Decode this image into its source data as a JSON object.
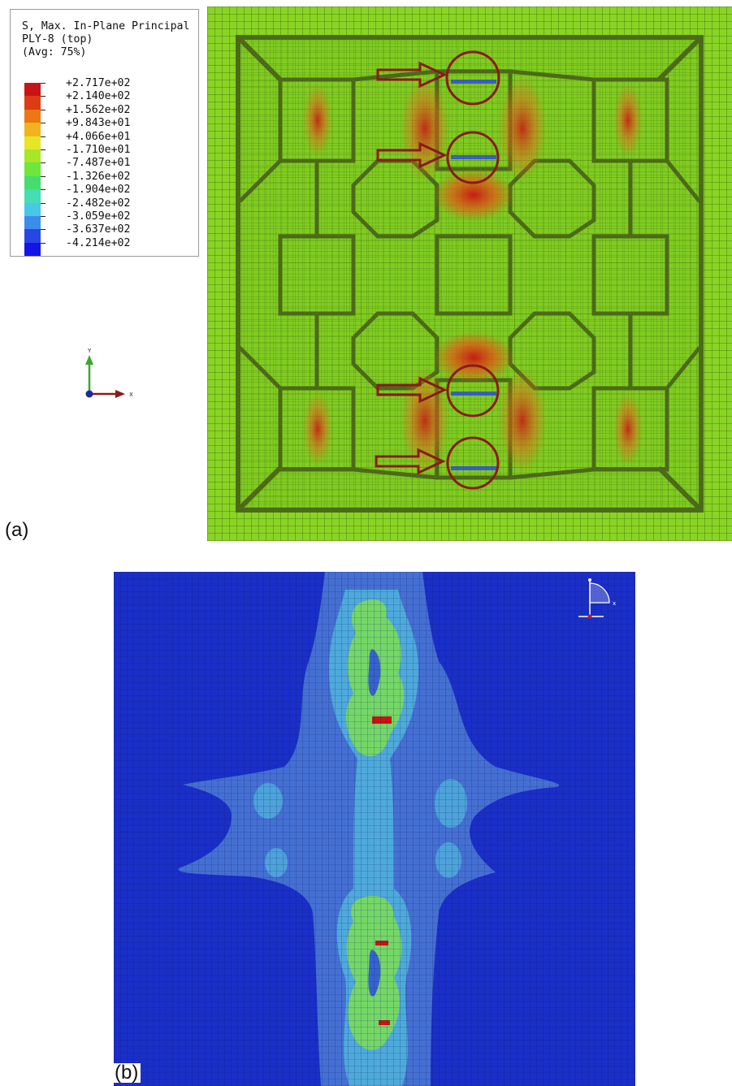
{
  "panel_a": {
    "label": "(a)",
    "legend": {
      "title_lines": [
        "S, Max. In-Plane Principal",
        "PLY-8 (top)",
        "(Avg: 75%)"
      ],
      "entries": [
        {
          "value": "+2.717e+02",
          "color": "#c81414"
        },
        {
          "value": "+2.140e+02",
          "color": "#dc3c14"
        },
        {
          "value": "+1.562e+02",
          "color": "#ec7814"
        },
        {
          "value": "+9.843e+01",
          "color": "#f0b41e"
        },
        {
          "value": "+4.066e+01",
          "color": "#e6e628"
        },
        {
          "value": "-1.710e+01",
          "color": "#a8e628"
        },
        {
          "value": "-7.487e+01",
          "color": "#6ee63c"
        },
        {
          "value": "-1.326e+02",
          "color": "#46dc6e"
        },
        {
          "value": "-1.904e+02",
          "color": "#46dcb4"
        },
        {
          "value": "-2.482e+02",
          "color": "#46c8e6"
        },
        {
          "value": "-3.059e+02",
          "color": "#3c8cec"
        },
        {
          "value": "-3.637e+02",
          "color": "#2846e6"
        },
        {
          "value": "-4.214e+02",
          "color": "#1414e6"
        }
      ]
    },
    "triad": {
      "y_label": "Y",
      "x_label": "X"
    }
  },
  "panel_b": {
    "label": "(b)",
    "triad": {
      "x_label": "x"
    }
  },
  "colors": {
    "mesh_green": "#86d420",
    "stiffener_dark": "#4c6a18",
    "stress_red": "#c81414",
    "marker_ring": "#8b1a1a",
    "plot_background_blue": "#1a2fc8",
    "contour_light_blue": "#4a78d4",
    "contour_cyan": "#50b4dc",
    "contour_green": "#7adc5a"
  }
}
